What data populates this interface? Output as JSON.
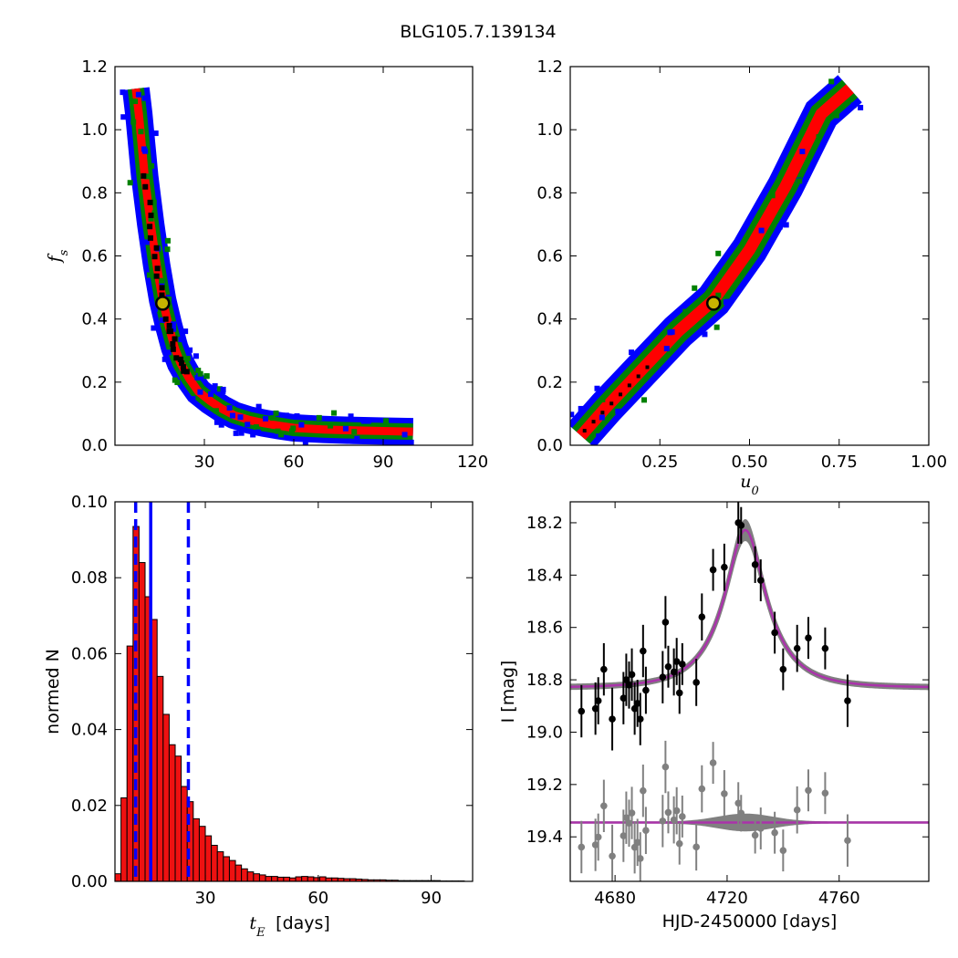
{
  "figure": {
    "title": "BLG105.7.139134"
  },
  "colors": {
    "sigma1": "#ff0000",
    "sigma2": "#008000",
    "sigma3": "#0000ff",
    "best": "#000000",
    "hist_fill": "#ee1111",
    "marker_fill": "#c8b400",
    "model": "#aa33aa",
    "band": "#808080"
  },
  "chart_data": [
    {
      "id": "fs_vs_tE",
      "type": "heatmap",
      "xlabel": "",
      "ylabel": "f_s",
      "xlim": [
        0,
        120
      ],
      "ylim": [
        0,
        1.2
      ],
      "xticks": [
        30,
        60,
        90,
        120
      ],
      "xtick_labels": [
        "30",
        "60",
        "90",
        "120"
      ],
      "yticks": [
        0.0,
        0.2,
        0.4,
        0.6,
        0.8,
        1.0,
        1.2
      ],
      "ytick_labels": [
        "0.0",
        "0.2",
        "0.4",
        "0.6",
        "0.8",
        "1.0",
        "1.2"
      ],
      "ridge": {
        "x": [
          7,
          8,
          9,
          10,
          12,
          14,
          16,
          18,
          20,
          22,
          25,
          28,
          32,
          36,
          40,
          45,
          50,
          55,
          60,
          70,
          80,
          90,
          100
        ],
        "y": [
          1.13,
          1.05,
          0.95,
          0.85,
          0.7,
          0.57,
          0.46,
          0.38,
          0.31,
          0.26,
          0.21,
          0.17,
          0.14,
          0.115,
          0.095,
          0.08,
          0.07,
          0.062,
          0.055,
          0.05,
          0.047,
          0.045,
          0.043
        ]
      },
      "best_fit": {
        "x": 16,
        "y": 0.45
      }
    },
    {
      "id": "fs_vs_u0",
      "type": "heatmap",
      "xlabel": "u_0",
      "ylabel": "",
      "xlim": [
        0,
        1
      ],
      "ylim": [
        0,
        1.2
      ],
      "xticks": [
        0.25,
        0.5,
        0.75,
        1.0
      ],
      "xtick_labels": [
        "0.25",
        "0.50",
        "0.75",
        "1.00"
      ],
      "yticks": [
        0.0,
        0.2,
        0.4,
        0.6,
        0.8,
        1.0,
        1.2
      ],
      "ytick_labels": [
        "0.0",
        "0.2",
        "0.4",
        "0.6",
        "0.8",
        "1.0",
        "1.2"
      ],
      "ridge": {
        "x": [
          0.03,
          0.1,
          0.2,
          0.3,
          0.4,
          0.5,
          0.6,
          0.7,
          0.78
        ],
        "y": [
          0.03,
          0.12,
          0.24,
          0.36,
          0.46,
          0.62,
          0.82,
          1.05,
          1.13
        ]
      },
      "best_fit": {
        "x": 0.4,
        "y": 0.45
      }
    },
    {
      "id": "tE_histogram",
      "type": "bar",
      "xlabel": "[days]",
      "xlabel_symbol": "t_E",
      "ylabel": "normed N",
      "xlim": [
        6,
        101
      ],
      "ylim": [
        0,
        0.1
      ],
      "xticks": [
        30,
        60,
        90
      ],
      "xtick_labels": [
        "30",
        "60",
        "90"
      ],
      "yticks": [
        0.0,
        0.02,
        0.04,
        0.06,
        0.08,
        0.1
      ],
      "ytick_labels": [
        "0.00",
        "0.02",
        "0.04",
        "0.06",
        "0.08",
        "0.10"
      ],
      "bin_start": 6,
      "bin_width": 1.6,
      "values": [
        0.002,
        0.022,
        0.062,
        0.0935,
        0.084,
        0.075,
        0.069,
        0.054,
        0.044,
        0.036,
        0.033,
        0.025,
        0.021,
        0.0165,
        0.0145,
        0.012,
        0.0095,
        0.0078,
        0.0065,
        0.0055,
        0.0043,
        0.0033,
        0.0025,
        0.002,
        0.0017,
        0.0013,
        0.0013,
        0.0011,
        0.0011,
        0.0009,
        0.0012,
        0.0013,
        0.0012,
        0.001,
        0.0012,
        0.0009,
        0.0009,
        0.0008,
        0.0007,
        0.0007,
        0.0006,
        0.0005,
        0.0004,
        0.0004,
        0.0004,
        0.0003,
        0.0003,
        0.0002,
        0.0002,
        0.0002,
        0.0002,
        0.0002,
        0.0002,
        0.0002,
        0.0001,
        0.0001,
        0.0001,
        0.0001
      ],
      "median": 15.5,
      "lower": 11.5,
      "upper": 25.5
    },
    {
      "id": "light_curve",
      "type": "scatter",
      "xlabel": "HJD-2450000 [days]",
      "ylabel": "I [mag]",
      "xlim": [
        4664,
        4792
      ],
      "ylim": [
        19.57,
        18.12
      ],
      "inverted_y": true,
      "xticks": [
        4680,
        4720,
        4760
      ],
      "xtick_labels": [
        "4680",
        "4720",
        "4760"
      ],
      "yticks": [
        18.2,
        18.4,
        18.6,
        18.8,
        19.0,
        19.2,
        19.4
      ],
      "ytick_labels": [
        "18.2",
        "18.4",
        "18.6",
        "18.8",
        "19.0",
        "19.2",
        "19.4"
      ],
      "model": {
        "t0": 4726.5,
        "u0": 0.4,
        "tE": 16,
        "baseline": 18.83,
        "fs": 0.45
      },
      "residual_offset": 19.345,
      "points": [
        {
          "t": 4668,
          "m": 18.92,
          "e": 0.1
        },
        {
          "t": 4673,
          "m": 18.91,
          "e": 0.1
        },
        {
          "t": 4674,
          "m": 18.88,
          "e": 0.09
        },
        {
          "t": 4676,
          "m": 18.76,
          "e": 0.1
        },
        {
          "t": 4679,
          "m": 18.95,
          "e": 0.12
        },
        {
          "t": 4683,
          "m": 18.87,
          "e": 0.1
        },
        {
          "t": 4684,
          "m": 18.8,
          "e": 0.1
        },
        {
          "t": 4685,
          "m": 18.82,
          "e": 0.09
        },
        {
          "t": 4686,
          "m": 18.78,
          "e": 0.1
        },
        {
          "t": 4687,
          "m": 18.91,
          "e": 0.1
        },
        {
          "t": 4688,
          "m": 18.89,
          "e": 0.09
        },
        {
          "t": 4689,
          "m": 18.95,
          "e": 0.1
        },
        {
          "t": 4690,
          "m": 18.69,
          "e": 0.1
        },
        {
          "t": 4691,
          "m": 18.84,
          "e": 0.09
        },
        {
          "t": 4697,
          "m": 18.79,
          "e": 0.1
        },
        {
          "t": 4698,
          "m": 18.58,
          "e": 0.1
        },
        {
          "t": 4699,
          "m": 18.75,
          "e": 0.08
        },
        {
          "t": 4701,
          "m": 18.77,
          "e": 0.09
        },
        {
          "t": 4702,
          "m": 18.73,
          "e": 0.09
        },
        {
          "t": 4703,
          "m": 18.85,
          "e": 0.08
        },
        {
          "t": 4704,
          "m": 18.74,
          "e": 0.08
        },
        {
          "t": 4709,
          "m": 18.81,
          "e": 0.09
        },
        {
          "t": 4711,
          "m": 18.56,
          "e": 0.09
        },
        {
          "t": 4715,
          "m": 18.38,
          "e": 0.08
        },
        {
          "t": 4719,
          "m": 18.37,
          "e": 0.09
        },
        {
          "t": 4724,
          "m": 18.2,
          "e": 0.08
        },
        {
          "t": 4725,
          "m": 18.21,
          "e": 0.07
        },
        {
          "t": 4730,
          "m": 18.36,
          "e": 0.07
        },
        {
          "t": 4732,
          "m": 18.42,
          "e": 0.08
        },
        {
          "t": 4737,
          "m": 18.62,
          "e": 0.08
        },
        {
          "t": 4740,
          "m": 18.76,
          "e": 0.08
        },
        {
          "t": 4745,
          "m": 18.68,
          "e": 0.09
        },
        {
          "t": 4749,
          "m": 18.64,
          "e": 0.08
        },
        {
          "t": 4755,
          "m": 18.68,
          "e": 0.08
        },
        {
          "t": 4763,
          "m": 18.88,
          "e": 0.1
        }
      ]
    }
  ]
}
